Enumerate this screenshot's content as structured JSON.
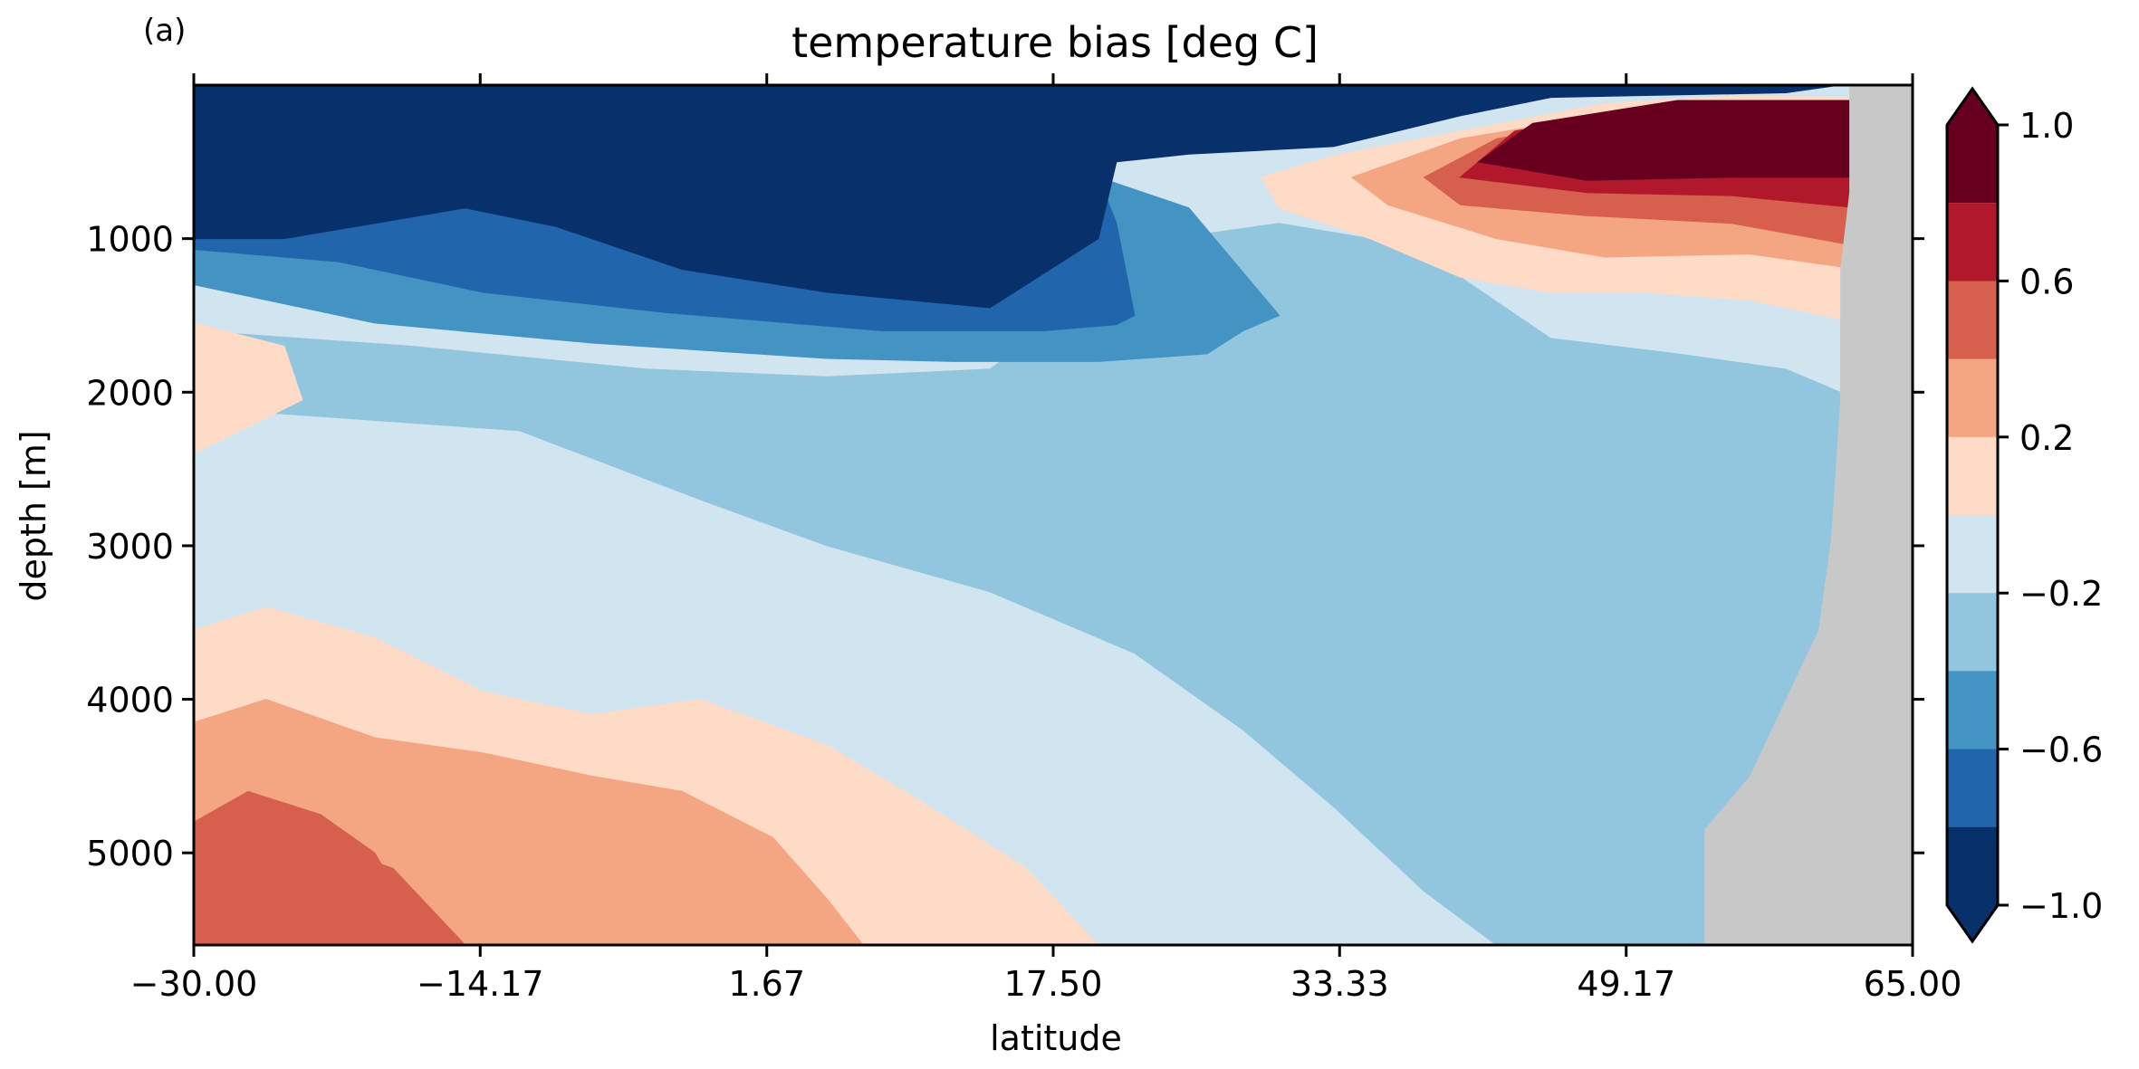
{
  "panel_label": "(a)",
  "chart_data": {
    "type": "heatmap",
    "title": "temperature bias [deg C]",
    "xlabel": "latitude",
    "ylabel": "depth [m]",
    "xlim": [
      -30,
      65
    ],
    "ylim": [
      5600,
      0
    ],
    "x_ticks": [
      -30.0,
      -14.17,
      1.67,
      17.5,
      33.33,
      49.17,
      65.0
    ],
    "x_tick_labels": [
      "−30.00",
      "−14.17",
      "1.67",
      "17.50",
      "33.33",
      "49.17",
      "65.00"
    ],
    "y_ticks": [
      1000,
      2000,
      3000,
      4000,
      5000
    ],
    "y_tick_labels": [
      "1000",
      "2000",
      "3000",
      "4000",
      "5000"
    ],
    "colorbar": {
      "levels": [
        -1.0,
        -0.8,
        -0.6,
        -0.4,
        -0.2,
        0.0,
        0.2,
        0.4,
        0.6,
        0.8,
        1.0
      ],
      "tick_values": [
        1.0,
        0.6,
        0.2,
        -0.2,
        -0.6,
        -1.0
      ],
      "tick_labels": [
        "1.0",
        "0.6",
        "0.2",
        "−0.2",
        "−0.6",
        "−1.0"
      ],
      "extend": "both",
      "colors": [
        "#08306b",
        "#2166ac",
        "#4393c3",
        "#92c5de",
        "#d1e5f0",
        "#fddbc7",
        "#f4a582",
        "#d6604d",
        "#b2182b",
        "#67001f"
      ]
    },
    "land_color": "#c8c8c8",
    "regions": [
      {
        "level": -0.2,
        "points": [
          [
            -30,
            0
          ],
          [
            65,
            0
          ],
          [
            65,
            5600
          ],
          [
            -30,
            5600
          ]
        ]
      },
      {
        "level": -0.4,
        "points": [
          [
            -30,
            2100
          ],
          [
            -12,
            2250
          ],
          [
            -2,
            2700
          ],
          [
            5,
            3000
          ],
          [
            14,
            3300
          ],
          [
            22,
            3700
          ],
          [
            28,
            4200
          ],
          [
            33,
            4700
          ],
          [
            38,
            5250
          ],
          [
            42,
            5600
          ],
          [
            55,
            5600
          ],
          [
            55,
            5200
          ],
          [
            60,
            4500
          ],
          [
            61,
            3500
          ],
          [
            61,
            2000
          ],
          [
            60,
            1950
          ],
          [
            58,
            1850
          ],
          [
            52,
            1750
          ],
          [
            45,
            1650
          ],
          [
            40,
            1250
          ],
          [
            35,
            1000
          ],
          [
            30,
            900
          ],
          [
            24,
            1000
          ],
          [
            14,
            1850
          ],
          [
            5,
            1900
          ],
          [
            -5,
            1850
          ],
          [
            -18,
            1700
          ],
          [
            -30,
            1600
          ]
        ]
      },
      {
        "level": -0.6,
        "points": [
          [
            -30,
            1300
          ],
          [
            -20,
            1550
          ],
          [
            -8,
            1680
          ],
          [
            5,
            1780
          ],
          [
            12,
            1800
          ],
          [
            20,
            1800
          ],
          [
            26,
            1750
          ],
          [
            28,
            1600
          ],
          [
            30,
            1500
          ],
          [
            25,
            800
          ],
          [
            20,
            600
          ],
          [
            8,
            700
          ],
          [
            -30,
            700
          ]
        ]
      },
      {
        "level": -0.8,
        "points": [
          [
            -30,
            1070
          ],
          [
            -22,
            1150
          ],
          [
            -14,
            1350
          ],
          [
            -4,
            1480
          ],
          [
            8,
            1600
          ],
          [
            17,
            1600
          ],
          [
            21,
            1560
          ],
          [
            22,
            1500
          ],
          [
            21,
            900
          ],
          [
            20,
            600
          ],
          [
            8,
            700
          ],
          [
            -30,
            700
          ]
        ]
      },
      {
        "level": -1.0,
        "points": [
          [
            -30,
            0
          ],
          [
            61,
            0
          ],
          [
            58,
            50
          ],
          [
            45,
            80
          ],
          [
            40,
            200
          ],
          [
            33,
            400
          ],
          [
            25,
            450
          ],
          [
            21,
            500
          ],
          [
            20,
            1000
          ],
          [
            14,
            1450
          ],
          [
            5,
            1350
          ],
          [
            -3,
            1200
          ],
          [
            -10,
            920
          ],
          [
            -15,
            800
          ],
          [
            -20,
            900
          ],
          [
            -25,
            1000
          ],
          [
            -30,
            1000
          ]
        ]
      },
      {
        "level": 0.0,
        "points": [
          [
            29,
            600
          ],
          [
            33,
            460
          ],
          [
            40,
            300
          ],
          [
            48,
            120
          ],
          [
            55,
            70
          ],
          [
            62,
            80
          ],
          [
            62,
            1550
          ],
          [
            56,
            1400
          ],
          [
            50,
            1350
          ],
          [
            45,
            1350
          ],
          [
            40,
            1250
          ],
          [
            35,
            1000
          ],
          [
            30,
            800
          ]
        ]
      },
      {
        "level": 0.2,
        "points": [
          [
            34,
            600
          ],
          [
            40,
            350
          ],
          [
            50,
            150
          ],
          [
            62,
            100
          ],
          [
            62,
            1200
          ],
          [
            56,
            1100
          ],
          [
            48,
            1120
          ],
          [
            42,
            1000
          ],
          [
            36,
            780
          ]
        ]
      },
      {
        "level": 0.4,
        "points": [
          [
            38,
            600
          ],
          [
            42,
            350
          ],
          [
            52,
            130
          ],
          [
            62,
            100
          ],
          [
            62,
            1050
          ],
          [
            55,
            900
          ],
          [
            47,
            850
          ],
          [
            40,
            780
          ]
        ]
      },
      {
        "level": 0.6,
        "points": [
          [
            40,
            600
          ],
          [
            43,
            300
          ],
          [
            52,
            120
          ],
          [
            62,
            100
          ],
          [
            62,
            800
          ],
          [
            55,
            720
          ],
          [
            47,
            700
          ]
        ]
      },
      {
        "level": 0.8,
        "points": [
          [
            41,
            500
          ],
          [
            44,
            250
          ],
          [
            52,
            100
          ],
          [
            62,
            100
          ],
          [
            62,
            600
          ],
          [
            55,
            600
          ],
          [
            47,
            620
          ]
        ]
      },
      {
        "level": 0.0,
        "points": [
          [
            -30,
            5600
          ],
          [
            -30,
            3550
          ],
          [
            -26,
            3400
          ],
          [
            -20,
            3600
          ],
          [
            -14,
            3950
          ],
          [
            -8,
            4100
          ],
          [
            -2,
            4000
          ],
          [
            5,
            4300
          ],
          [
            10,
            4650
          ],
          [
            16,
            5100
          ],
          [
            20,
            5600
          ]
        ]
      },
      {
        "level": 0.0,
        "points": [
          [
            -30,
            1550
          ],
          [
            -25,
            1700
          ],
          [
            -24,
            2050
          ],
          [
            -30,
            2400
          ]
        ]
      },
      {
        "level": 0.2,
        "points": [
          [
            -30,
            5600
          ],
          [
            -30,
            4150
          ],
          [
            -26,
            4000
          ],
          [
            -20,
            4250
          ],
          [
            -14,
            4350
          ],
          [
            -8,
            4500
          ],
          [
            -3,
            4600
          ],
          [
            2,
            4900
          ],
          [
            5,
            5300
          ],
          [
            7,
            5600
          ]
        ]
      },
      {
        "level": 0.4,
        "points": [
          [
            -30,
            5600
          ],
          [
            -30,
            4800
          ],
          [
            -27,
            4600
          ],
          [
            -23,
            4750
          ],
          [
            -20,
            5000
          ],
          [
            -17,
            5600
          ]
        ]
      },
      {
        "level": 0.4,
        "points": [
          [
            -24,
            4900
          ],
          [
            -19,
            5100
          ],
          [
            -15,
            5600
          ],
          [
            -24,
            5600
          ]
        ]
      }
    ],
    "land_outline": [
      [
        65,
        0
      ],
      [
        65,
        5600
      ],
      [
        53.5,
        5600
      ],
      [
        53.5,
        4850
      ],
      [
        56,
        4500
      ],
      [
        58,
        4000
      ],
      [
        59.8,
        3550
      ],
      [
        60.5,
        2950
      ],
      [
        61,
        2050
      ],
      [
        61,
        1200
      ],
      [
        61.5,
        700
      ],
      [
        61.5,
        0
      ]
    ]
  }
}
